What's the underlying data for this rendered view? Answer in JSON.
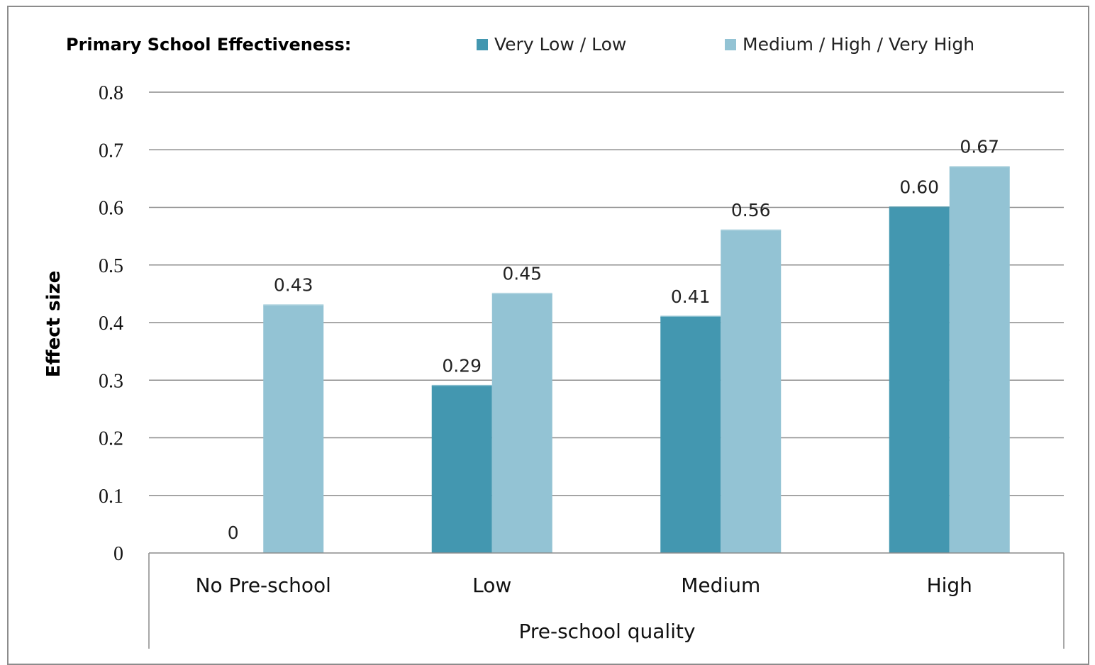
{
  "chart_data": {
    "type": "bar",
    "title": "",
    "legend_title": "Primary School Effectiveness:",
    "legend_position": "top",
    "xlabel": "Pre-school quality",
    "ylabel": "Effect size",
    "ylim": [
      0,
      0.8
    ],
    "yticks": [
      "0",
      "0.1",
      "0.2",
      "0.3",
      "0.4",
      "0.5",
      "0.6",
      "0.7",
      "0.8"
    ],
    "grid": true,
    "categories": [
      "No Pre-school",
      "Low",
      "Medium",
      "High"
    ],
    "series": [
      {
        "name": "Very Low / Low",
        "color": "#4397b0",
        "values": [
          0,
          0.29,
          0.41,
          0.6
        ],
        "labels": [
          "0",
          "0.29",
          "0.41",
          "0.60"
        ]
      },
      {
        "name": "Medium / High / Very High",
        "color": "#93c3d4",
        "values": [
          0.43,
          0.45,
          0.56,
          0.67
        ],
        "labels": [
          "0.43",
          "0.45",
          "0.56",
          "0.67"
        ]
      }
    ]
  }
}
